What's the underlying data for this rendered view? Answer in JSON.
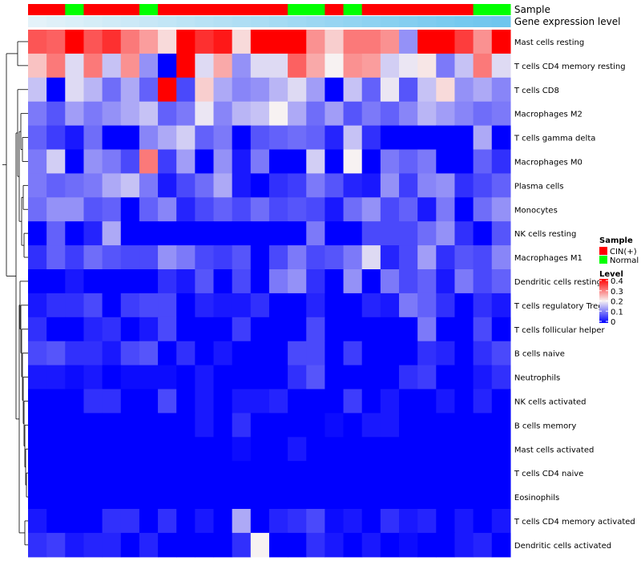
{
  "chart_data": {
    "type": "heatmap",
    "title": "",
    "annotation_rows": [
      {
        "name": "Sample",
        "values": [
          "CIN(+)",
          "CIN(+)",
          "Normal",
          "CIN(+)",
          "CIN(+)",
          "CIN(+)",
          "Normal",
          "CIN(+)",
          "CIN(+)",
          "CIN(+)",
          "CIN(+)",
          "CIN(+)",
          "CIN(+)",
          "CIN(+)",
          "Normal",
          "Normal",
          "CIN(+)",
          "Normal",
          "CIN(+)",
          "CIN(+)",
          "CIN(+)",
          "CIN(+)",
          "CIN(+)",
          "CIN(+)",
          "Normal",
          "Normal"
        ]
      },
      {
        "name": "Gene expression level",
        "values": [
          0.02,
          0.06,
          0.1,
          0.14,
          0.18,
          0.22,
          0.26,
          0.3,
          0.34,
          0.38,
          0.42,
          0.46,
          0.5,
          0.54,
          0.58,
          0.62,
          0.66,
          0.7,
          0.74,
          0.78,
          0.82,
          0.86,
          0.9,
          0.94,
          0.97,
          1.0
        ]
      }
    ],
    "rows": [
      "Mast cells resting",
      "T cells CD4 memory resting",
      "T cells CD8",
      "Macrophages M2",
      "T cells gamma delta",
      "Macrophages M0",
      "Plasma cells",
      "Monocytes",
      "NK cells resting",
      "Macrophages M1",
      "Dendritic cells resting",
      "T cells regulatory  Tregs",
      "T cells follicular helper",
      "B cells naive",
      "Neutrophils",
      "NK cells activated",
      "B cells memory",
      "Mast cells activated",
      "T cells CD4 naive",
      "Eosinophils",
      "T cells CD4 memory activated",
      "Dendritic cells activated"
    ],
    "values": [
      [
        0.33,
        0.32,
        0.4,
        0.33,
        0.36,
        0.3,
        0.27,
        0.22,
        0.4,
        0.36,
        0.38,
        0.22,
        0.4,
        0.4,
        0.4,
        0.28,
        0.23,
        0.3,
        0.3,
        0.28,
        0.12,
        0.4,
        0.4,
        0.35,
        0.28,
        0.4
      ],
      [
        0.24,
        0.3,
        0.18,
        0.3,
        0.16,
        0.28,
        0.12,
        0.0,
        0.4,
        0.18,
        0.26,
        0.12,
        0.18,
        0.18,
        0.32,
        0.26,
        0.2,
        0.28,
        0.27,
        0.17,
        0.19,
        0.21,
        0.1,
        0.16,
        0.3,
        0.18
      ],
      [
        0.16,
        0.0,
        0.18,
        0.15,
        0.09,
        0.14,
        0.08,
        0.4,
        0.06,
        0.23,
        0.14,
        0.11,
        0.12,
        0.15,
        0.18,
        0.13,
        0.0,
        0.16,
        0.08,
        0.19,
        0.07,
        0.16,
        0.22,
        0.12,
        0.14,
        0.11
      ],
      [
        0.1,
        0.07,
        0.13,
        0.1,
        0.12,
        0.14,
        0.16,
        0.08,
        0.1,
        0.19,
        0.11,
        0.15,
        0.16,
        0.2,
        0.14,
        0.09,
        0.13,
        0.07,
        0.1,
        0.08,
        0.11,
        0.15,
        0.13,
        0.11,
        0.09,
        0.1
      ],
      [
        0.08,
        0.05,
        0.02,
        0.09,
        0.0,
        0.0,
        0.11,
        0.14,
        0.17,
        0.08,
        0.1,
        0.0,
        0.07,
        0.08,
        0.09,
        0.08,
        0.03,
        0.16,
        0.04,
        0.0,
        0.0,
        0.0,
        0.0,
        0.0,
        0.14,
        0.0
      ],
      [
        0.1,
        0.17,
        0.0,
        0.12,
        0.1,
        0.06,
        0.3,
        0.05,
        0.13,
        0.0,
        0.12,
        0.02,
        0.1,
        0.0,
        0.0,
        0.17,
        0.0,
        0.2,
        0.0,
        0.1,
        0.08,
        0.1,
        0.0,
        0.0,
        0.08,
        0.04
      ],
      [
        0.1,
        0.08,
        0.09,
        0.1,
        0.14,
        0.16,
        0.1,
        0.02,
        0.06,
        0.09,
        0.14,
        0.02,
        0.0,
        0.04,
        0.05,
        0.1,
        0.07,
        0.03,
        0.02,
        0.12,
        0.05,
        0.11,
        0.12,
        0.04,
        0.06,
        0.08
      ],
      [
        0.09,
        0.12,
        0.12,
        0.07,
        0.08,
        0.0,
        0.08,
        0.11,
        0.03,
        0.06,
        0.08,
        0.06,
        0.09,
        0.06,
        0.07,
        0.06,
        0.02,
        0.09,
        0.12,
        0.06,
        0.08,
        0.02,
        0.1,
        0.0,
        0.09,
        0.12
      ],
      [
        0.0,
        0.08,
        0.0,
        0.03,
        0.14,
        0.0,
        0.0,
        0.0,
        0.0,
        0.0,
        0.0,
        0.0,
        0.0,
        0.0,
        0.0,
        0.1,
        0.0,
        0.0,
        0.06,
        0.06,
        0.06,
        0.09,
        0.12,
        0.04,
        0.0,
        0.07
      ],
      [
        0.04,
        0.08,
        0.05,
        0.09,
        0.07,
        0.06,
        0.06,
        0.12,
        0.1,
        0.06,
        0.05,
        0.07,
        0.0,
        0.06,
        0.1,
        0.06,
        0.07,
        0.1,
        0.18,
        0.03,
        0.06,
        0.13,
        0.04,
        0.07,
        0.06,
        0.11
      ],
      [
        0.0,
        0.0,
        0.02,
        0.0,
        0.0,
        0.0,
        0.0,
        0.04,
        0.02,
        0.07,
        0.0,
        0.06,
        0.0,
        0.1,
        0.12,
        0.04,
        0.0,
        0.12,
        0.0,
        0.1,
        0.06,
        0.08,
        0.02,
        0.1,
        0.06,
        0.08
      ],
      [
        0.02,
        0.04,
        0.04,
        0.06,
        0.0,
        0.05,
        0.06,
        0.06,
        0.0,
        0.03,
        0.02,
        0.02,
        0.04,
        0.0,
        0.0,
        0.03,
        0.0,
        0.0,
        0.03,
        0.02,
        0.1,
        0.08,
        0.04,
        0.0,
        0.04,
        0.02
      ],
      [
        0.04,
        0.0,
        0.0,
        0.03,
        0.04,
        0.0,
        0.02,
        0.06,
        0.0,
        0.0,
        0.0,
        0.05,
        0.0,
        0.0,
        0.0,
        0.06,
        0.0,
        0.0,
        0.0,
        0.0,
        0.0,
        0.1,
        0.0,
        0.0,
        0.06,
        0.0
      ],
      [
        0.06,
        0.07,
        0.04,
        0.04,
        0.02,
        0.06,
        0.07,
        0.0,
        0.04,
        0.0,
        0.02,
        0.0,
        0.0,
        0.0,
        0.06,
        0.06,
        0.0,
        0.05,
        0.0,
        0.0,
        0.0,
        0.04,
        0.03,
        0.0,
        0.04,
        0.06
      ],
      [
        0.02,
        0.02,
        0.01,
        0.02,
        0.0,
        0.01,
        0.01,
        0.01,
        0.0,
        0.02,
        0.0,
        0.0,
        0.0,
        0.0,
        0.04,
        0.07,
        0.0,
        0.0,
        0.0,
        0.0,
        0.04,
        0.05,
        0.0,
        0.0,
        0.02,
        0.04
      ],
      [
        0.0,
        0.0,
        0.0,
        0.04,
        0.04,
        0.0,
        0.0,
        0.06,
        0.0,
        0.02,
        0.0,
        0.02,
        0.02,
        0.03,
        0.0,
        0.0,
        0.0,
        0.05,
        0.0,
        0.02,
        0.0,
        0.0,
        0.02,
        0.0,
        0.03,
        0.0
      ],
      [
        0.0,
        0.0,
        0.0,
        0.0,
        0.0,
        0.0,
        0.0,
        0.0,
        0.0,
        0.02,
        0.0,
        0.04,
        0.0,
        0.0,
        0.0,
        0.0,
        0.01,
        0.0,
        0.02,
        0.02,
        0.0,
        0.0,
        0.0,
        0.0,
        0.0,
        0.0
      ],
      [
        0.0,
        0.0,
        0.0,
        0.0,
        0.0,
        0.0,
        0.0,
        0.0,
        0.0,
        0.0,
        0.0,
        0.01,
        0.0,
        0.0,
        0.02,
        0.0,
        0.0,
        0.0,
        0.0,
        0.0,
        0.0,
        0.0,
        0.0,
        0.0,
        0.0,
        0.0
      ],
      [
        0.0,
        0.0,
        0.0,
        0.0,
        0.0,
        0.0,
        0.0,
        0.0,
        0.0,
        0.0,
        0.0,
        0.0,
        0.0,
        0.0,
        0.0,
        0.0,
        0.0,
        0.0,
        0.0,
        0.0,
        0.0,
        0.0,
        0.0,
        0.0,
        0.0,
        0.0
      ],
      [
        0.0,
        0.0,
        0.0,
        0.0,
        0.0,
        0.0,
        0.0,
        0.0,
        0.0,
        0.0,
        0.0,
        0.0,
        0.0,
        0.0,
        0.0,
        0.0,
        0.0,
        0.0,
        0.0,
        0.0,
        0.0,
        0.0,
        0.0,
        0.0,
        0.0,
        0.0
      ],
      [
        0.02,
        0.0,
        0.0,
        0.0,
        0.04,
        0.04,
        0.0,
        0.04,
        0.0,
        0.02,
        0.0,
        0.14,
        0.0,
        0.03,
        0.04,
        0.06,
        0.01,
        0.02,
        0.0,
        0.04,
        0.02,
        0.03,
        0.0,
        0.02,
        0.0,
        0.02
      ],
      [
        0.04,
        0.05,
        0.02,
        0.03,
        0.03,
        0.0,
        0.03,
        0.0,
        0.0,
        0.0,
        0.0,
        0.04,
        0.2,
        0.0,
        0.0,
        0.04,
        0.02,
        0.0,
        0.02,
        0.0,
        0.01,
        0.0,
        0.0,
        0.02,
        0.03,
        0.0
      ]
    ],
    "color_scale": {
      "min": 0,
      "mid": 0.2,
      "max": 0.4,
      "low_color": "#0000ff",
      "mid_color": "#f7f2f2",
      "high_color": "#ff0000"
    },
    "annotation_colors": {
      "CIN(+)": "#ff0000",
      "Normal": "#00ff00",
      "gene_low": "#e6f3f9",
      "gene_high": "#6ec6ee"
    },
    "legend": {
      "sample_title": "Sample",
      "sample_entries": [
        "CIN(+)",
        "Normal"
      ],
      "level_title": "Level",
      "level_ticks": [
        "0.4",
        "0.3",
        "0.2",
        "0.1",
        "0"
      ]
    },
    "dendrogram": "rows clustered (hierarchical)"
  }
}
